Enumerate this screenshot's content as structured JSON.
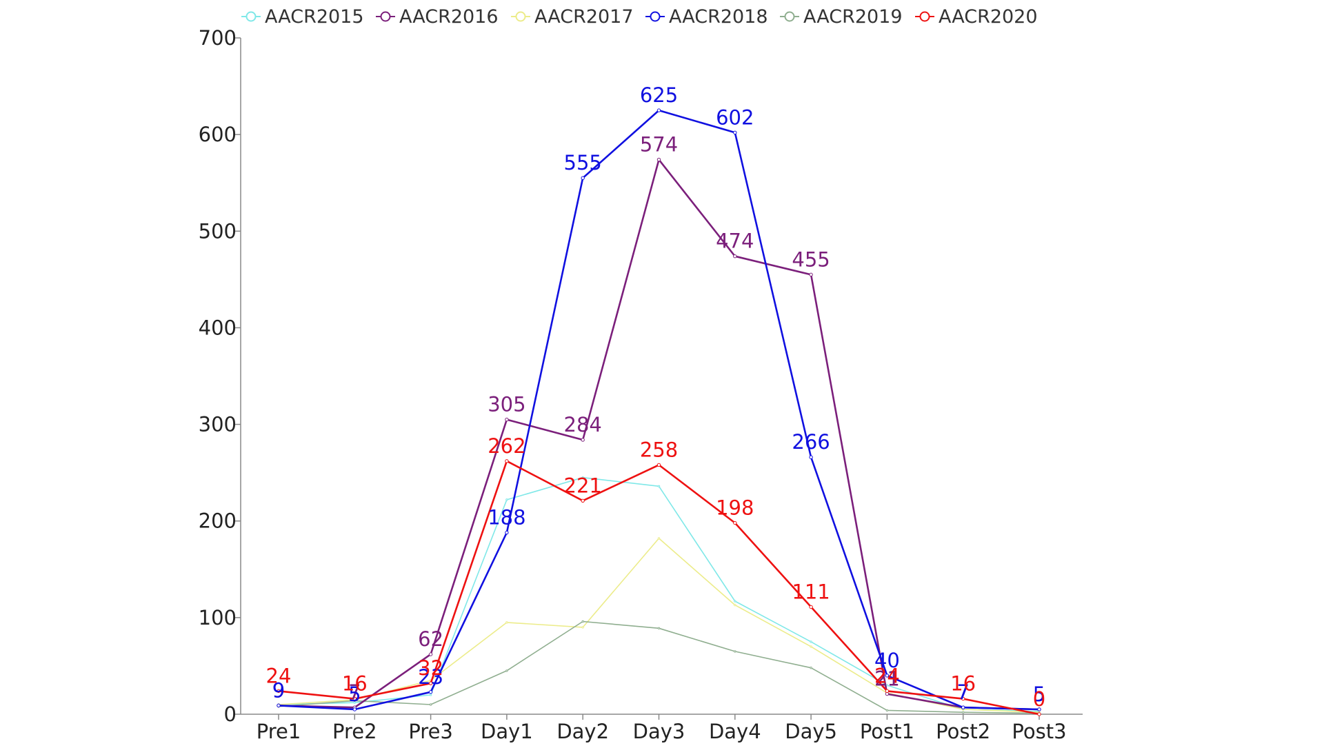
{
  "chart_data": {
    "type": "line",
    "title": "",
    "xlabel": "",
    "ylabel": "",
    "categories": [
      "Pre1",
      "Pre2",
      "Pre3",
      "Day1",
      "Day2",
      "Day3",
      "Day4",
      "Day5",
      "Post1",
      "Post2",
      "Post3"
    ],
    "ylim": [
      0,
      700
    ],
    "yticks": [
      "0",
      "100",
      "200",
      "300",
      "400",
      "500",
      "600",
      "700"
    ],
    "grid": false,
    "legend_position": "top",
    "series": [
      {
        "name": "AACR2015",
        "color": "#7fe8e8",
        "values": [
          10,
          12,
          20,
          222,
          245,
          236,
          117,
          75,
          30,
          5,
          3
        ],
        "show_labels": false
      },
      {
        "name": "AACR2016",
        "color": "#7b1f7b",
        "values": [
          9,
          7,
          62,
          305,
          284,
          574,
          474,
          455,
          21,
          7,
          5
        ],
        "show_labels": true
      },
      {
        "name": "AACR2017",
        "color": "#ecec8a",
        "values": [
          10,
          15,
          35,
          95,
          90,
          182,
          113,
          70,
          22,
          5,
          2
        ],
        "show_labels": false
      },
      {
        "name": "AACR2018",
        "color": "#1010e0",
        "values": [
          9,
          5,
          23,
          188,
          555,
          625,
          602,
          266,
          40,
          7,
          5
        ],
        "show_labels": true
      },
      {
        "name": "AACR2019",
        "color": "#8fae8f",
        "values": [
          8,
          14,
          10,
          45,
          96,
          89,
          65,
          48,
          4,
          2,
          1
        ],
        "show_labels": false
      },
      {
        "name": "AACR2020",
        "color": "#ee1111",
        "values": [
          24,
          16,
          32,
          262,
          221,
          258,
          198,
          111,
          24,
          16,
          0
        ],
        "show_labels": true
      }
    ]
  }
}
